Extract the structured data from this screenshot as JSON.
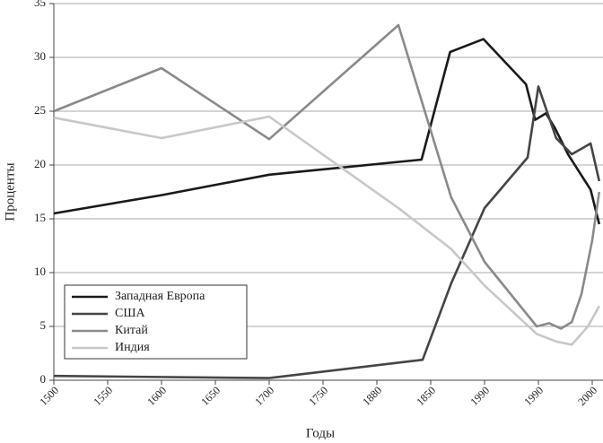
{
  "chart_data": {
    "type": "line",
    "x_label": "Годы",
    "y_label": "Проценты",
    "xlim": [
      0,
      10.2
    ],
    "ylim": [
      0,
      35
    ],
    "xticks": [
      {
        "value": 0,
        "label": "1500"
      },
      {
        "value": 1,
        "label": "1550"
      },
      {
        "value": 2,
        "label": "1600"
      },
      {
        "value": 3,
        "label": "1650"
      },
      {
        "value": 4,
        "label": "1700"
      },
      {
        "value": 5,
        "label": "1750"
      },
      {
        "value": 6,
        "label": "1880"
      },
      {
        "value": 7,
        "label": "1850"
      },
      {
        "value": 8,
        "label": "1990"
      },
      {
        "value": 9,
        "label": "1990"
      },
      {
        "value": 10,
        "label": "2000"
      }
    ],
    "yticks": [
      0,
      5,
      10,
      15,
      20,
      25,
      30,
      35
    ],
    "grid": true,
    "legend": "lower-left",
    "series": [
      {
        "name": "Западная Европа",
        "color": "#1a1a1a",
        "x": [
          0,
          2,
          4,
          6.83,
          7.36,
          7.98,
          8.77,
          8.94,
          9.14,
          9.3,
          9.55,
          9.97,
          10.13
        ],
        "values": [
          15.5,
          17.2,
          19.1,
          20.5,
          30.5,
          31.7,
          27.5,
          24.2,
          24.8,
          23.5,
          21,
          17.7,
          14.5
        ]
      },
      {
        "name": "США",
        "color": "#454545",
        "x": [
          0,
          4,
          6.85,
          7.38,
          8,
          8.8,
          9,
          9.33,
          9.62,
          9.97,
          10.13
        ],
        "values": [
          0.4,
          0.2,
          1.9,
          9,
          16,
          20.7,
          27.3,
          22.5,
          21,
          22,
          18.5
        ]
      },
      {
        "name": "Китай",
        "color": "#8a8a8a",
        "x": [
          0,
          2,
          4,
          6.4,
          7.38,
          8,
          8.97,
          9.2,
          9.42,
          9.62,
          9.8,
          10,
          10.13
        ],
        "values": [
          25,
          29,
          22.4,
          33,
          17,
          11,
          5,
          5.3,
          4.8,
          5.4,
          8,
          13,
          17.5
        ]
      },
      {
        "name": "Индия",
        "color": "#c8c8c8",
        "x": [
          0,
          2,
          4,
          6.4,
          7.38,
          8,
          8.97,
          9.33,
          9.62,
          9.92,
          10.13
        ],
        "values": [
          24.4,
          22.5,
          24.5,
          16,
          12.2,
          8.8,
          4.3,
          3.6,
          3.3,
          5,
          6.9
        ]
      }
    ]
  }
}
